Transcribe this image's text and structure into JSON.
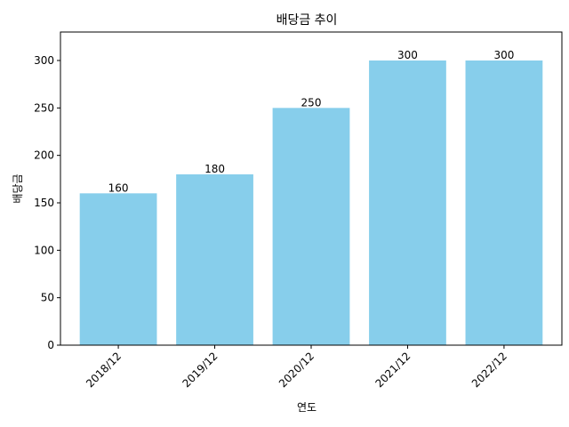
{
  "chart_data": {
    "type": "bar",
    "title": "배당금 추이",
    "xlabel": "연도",
    "ylabel": "배당금",
    "categories": [
      "2018/12",
      "2019/12",
      "2020/12",
      "2021/12",
      "2022/12"
    ],
    "values": [
      160,
      180,
      250,
      300,
      300
    ],
    "data_labels": [
      "160",
      "180",
      "250",
      "300",
      "300"
    ],
    "ylim": [
      0,
      330
    ],
    "yticks": [
      0,
      50,
      100,
      150,
      200,
      250,
      300
    ],
    "ytick_labels": [
      "0",
      "50",
      "100",
      "150",
      "200",
      "250",
      "300"
    ],
    "bar_color": "#87CEEB",
    "grid": false,
    "legend": "none"
  }
}
